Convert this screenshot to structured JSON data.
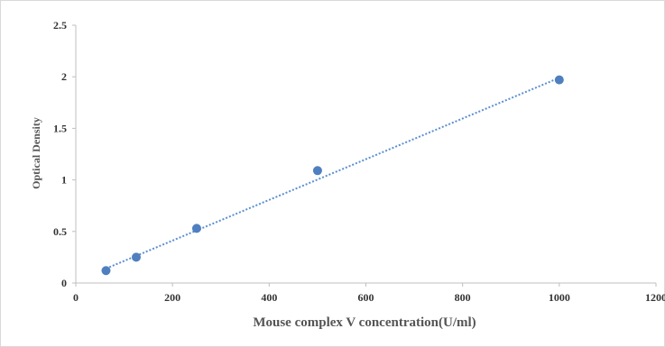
{
  "chart_data": {
    "type": "scatter",
    "title": "",
    "xlabel": "Mouse  complex V concentration(U/ml)",
    "ylabel": "Optical Density",
    "xlim": [
      0,
      1200
    ],
    "ylim": [
      0,
      2.5
    ],
    "x_ticks": [
      "0",
      "200",
      "400",
      "600",
      "800",
      "1000",
      "1200"
    ],
    "y_ticks": [
      "0",
      "0.5",
      "1",
      "1.5",
      "2",
      "2.5"
    ],
    "grid": false,
    "legend": "none",
    "series": [
      {
        "x": [
          62.5,
          125,
          250,
          500,
          1000
        ],
        "y": [
          0.12,
          0.25,
          0.53,
          1.09,
          1.97
        ]
      }
    ],
    "trendline": {
      "type": "linear",
      "style": "dotted",
      "x": [
        62.5,
        1000
      ],
      "y": [
        0.14,
        1.99
      ]
    },
    "colors": {
      "marker": "#4f7fbf",
      "trendline": "#5b8fd0",
      "axis": "#bfbfbf",
      "frame": "#d9d9d9"
    }
  }
}
